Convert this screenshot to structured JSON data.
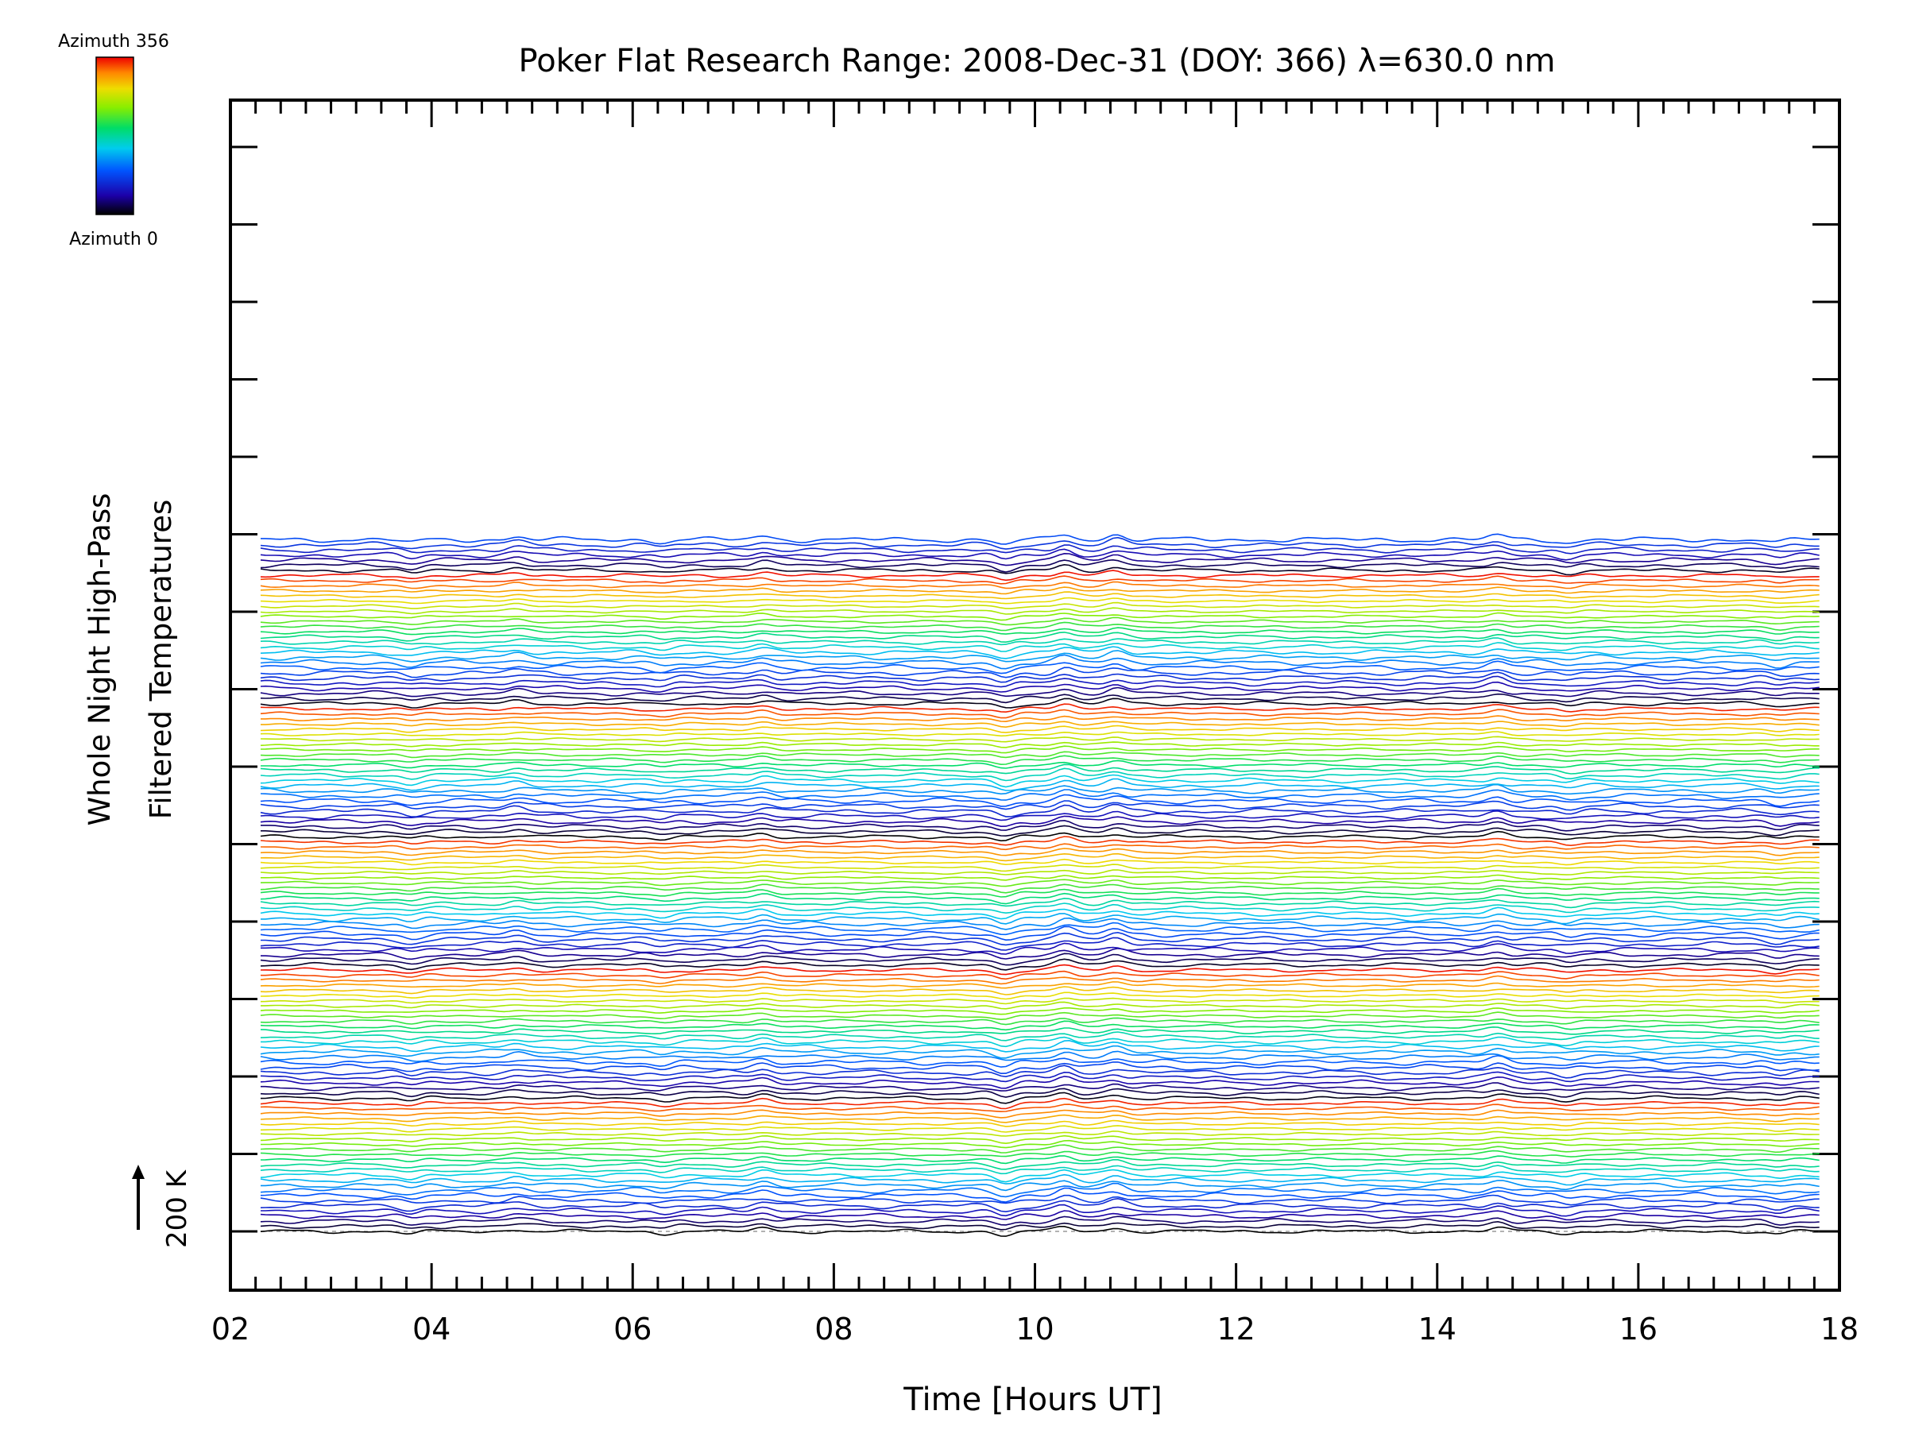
{
  "chart_data": {
    "type": "line",
    "title": "Poker Flat Research Range: 2008-Dec-31 (DOY: 366) λ=630.0 nm",
    "xlabel": "Time [Hours UT]",
    "ylabel_line1": "Whole Night High-Pass",
    "ylabel_line2": "Filtered Temperatures",
    "xlim": [
      2,
      18
    ],
    "x_tick_labels": [
      "02",
      "04",
      "06",
      "08",
      "10",
      "12",
      "14",
      "16",
      "18"
    ],
    "data_x_range": [
      2.3,
      17.8
    ],
    "scale_bar": {
      "label": "200 K",
      "value_K": 200
    },
    "colorbar": {
      "top_label": "Azimuth 356",
      "bottom_label": "Azimuth 0",
      "azimuth_range": [
        0,
        356
      ]
    },
    "series_count": 136,
    "azimuth_cycles": 5.3,
    "common_features": [
      {
        "time_h": 3.8,
        "amplitude": -0.35
      },
      {
        "time_h": 4.85,
        "amplitude": 0.3
      },
      {
        "time_h": 6.3,
        "amplitude": -0.25
      },
      {
        "time_h": 7.3,
        "amplitude": 0.4
      },
      {
        "time_h": 9.7,
        "amplitude": -0.55
      },
      {
        "time_h": 10.3,
        "amplitude": 0.6
      },
      {
        "time_h": 10.8,
        "amplitude": 0.5
      },
      {
        "time_h": 14.6,
        "amplitude": 0.45
      },
      {
        "time_h": 15.3,
        "amplitude": -0.3
      },
      {
        "time_h": 17.4,
        "amplitude": -0.3
      }
    ]
  },
  "colors": {
    "axis": "#000000",
    "baseline": "#999999",
    "background": "#ffffff"
  }
}
